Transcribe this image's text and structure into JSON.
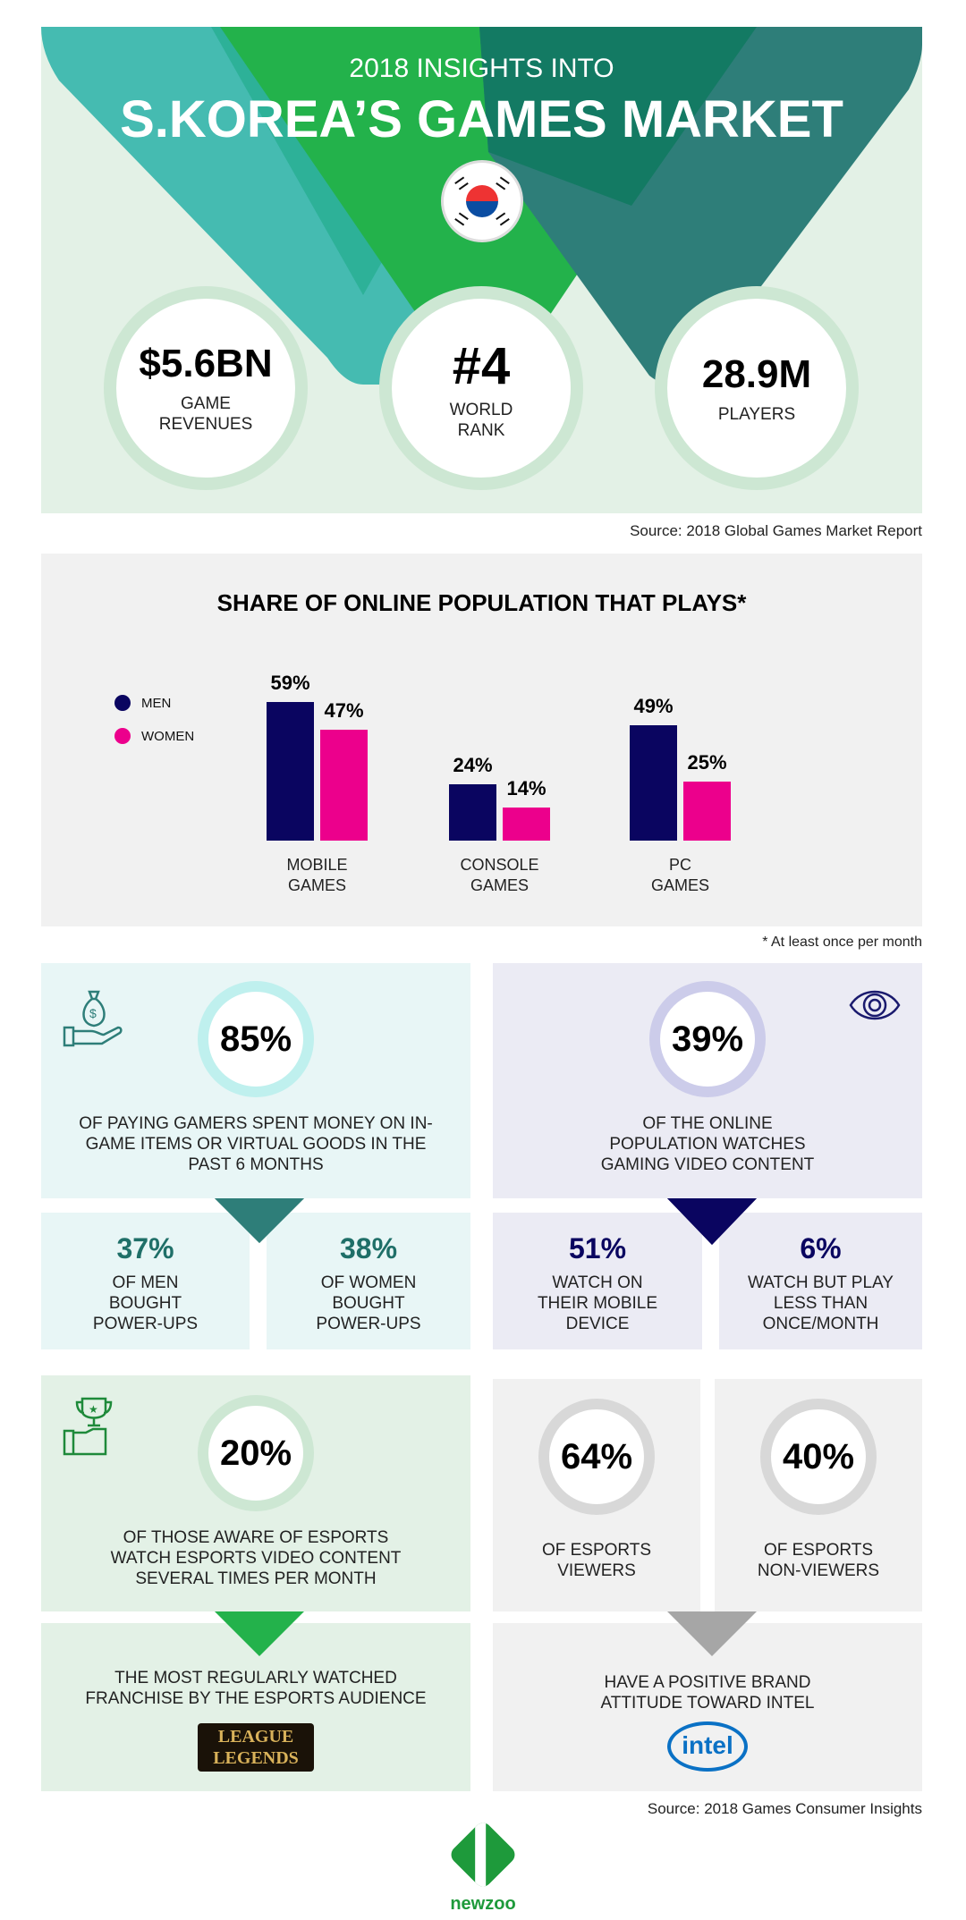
{
  "header": {
    "subtitle": "2018 INSIGHTS INTO",
    "title": "S.KOREA’S GAMES MARKET",
    "flag_icon": "south-korea-flag-icon",
    "stats": [
      {
        "value": "$5.6BN",
        "label": "GAME REVENUES"
      },
      {
        "value": "#4",
        "label": "WORLD RANK"
      },
      {
        "value": "28.9M",
        "label": "PLAYERS"
      }
    ],
    "source": "Source: 2018 Global Games Market Report"
  },
  "chart_data": {
    "type": "bar",
    "title": "SHARE OF ONLINE POPULATION THAT PLAYS*",
    "categories": [
      "MOBILE GAMES",
      "CONSOLE GAMES",
      "PC GAMES"
    ],
    "series": [
      {
        "name": "MEN",
        "color": "#0a0560",
        "values": [
          59,
          24,
          49
        ]
      },
      {
        "name": "WOMEN",
        "color": "#ec008c",
        "values": [
          47,
          14,
          25
        ]
      }
    ],
    "unit": "%",
    "legend": "left",
    "grid": false,
    "footnote": "* At least once per month"
  },
  "spending": {
    "value": "85%",
    "label": "OF PAYING GAMERS SPENT MONEY ON IN-GAME ITEMS OR VIRTUAL GOODS IN THE PAST 6 MONTHS",
    "icon": "money-bag-hand-icon",
    "sub": [
      {
        "value": "37%",
        "label": "OF MEN BOUGHT POWER-UPS"
      },
      {
        "value": "38%",
        "label": "OF WOMEN BOUGHT POWER-UPS"
      }
    ]
  },
  "video": {
    "value": "39%",
    "label": "OF THE ONLINE POPULATION WATCHES GAMING VIDEO CONTENT",
    "icon": "eye-icon",
    "sub": [
      {
        "value": "51%",
        "label": "WATCH ON THEIR MOBILE DEVICE"
      },
      {
        "value": "6%",
        "label": "WATCH BUT PLAY LESS THAN ONCE/MONTH"
      }
    ]
  },
  "esports": {
    "value": "20%",
    "label": "OF THOSE AWARE OF ESPORTS WATCH ESPORTS VIDEO CONTENT SEVERAL TIMES PER MONTH",
    "icon": "trophy-hand-icon",
    "franchise": "THE MOST REGULARLY WATCHED FRANCHISE BY THE ESPORTS AUDIENCE",
    "franchise_logo": "LEAGUE OF LEGENDS"
  },
  "intel": {
    "stats": [
      {
        "value": "64%",
        "label": "OF ESPORTS VIEWERS"
      },
      {
        "value": "40%",
        "label": "OF ESPORTS NON-VIEWERS"
      }
    ],
    "label": "HAVE A POSITIVE BRAND ATTITUDE TOWARD INTEL",
    "logo": "intel"
  },
  "footer": {
    "source": "Source: 2018 Games Consumer Insights",
    "logo": "newzoo"
  }
}
